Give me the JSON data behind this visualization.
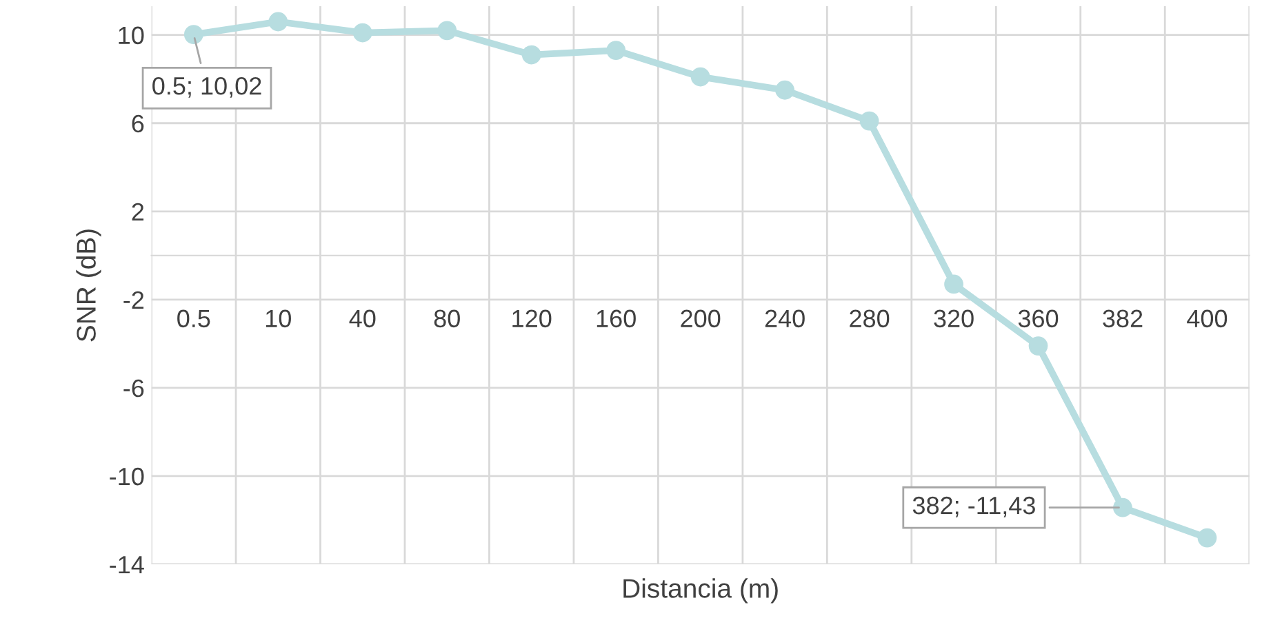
{
  "chart_data": {
    "type": "line",
    "xlabel": "Distancia (m)",
    "ylabel": "SNR (dB)",
    "categories": [
      "0.5",
      "10",
      "40",
      "80",
      "120",
      "160",
      "200",
      "240",
      "280",
      "320",
      "360",
      "382",
      "400"
    ],
    "series": [
      {
        "color": "#b7dde0",
        "values": [
          10.02,
          10.6,
          10.1,
          10.2,
          9.1,
          9.3,
          8.1,
          7.5,
          6.1,
          -1.3,
          -4.1,
          -11.43,
          -12.8
        ]
      }
    ],
    "ylim": [
      -14,
      11.3
    ],
    "yticks": [
      -14,
      -10,
      -6,
      -2,
      2,
      6,
      10
    ],
    "grid": true,
    "marker": "circle",
    "line_style": "solid",
    "annotations": [
      {
        "text": "0.5; 10,02",
        "x": "0.5",
        "y": 10.02
      },
      {
        "text": "382; -11,43",
        "x": "382",
        "y": -11.43
      }
    ]
  }
}
